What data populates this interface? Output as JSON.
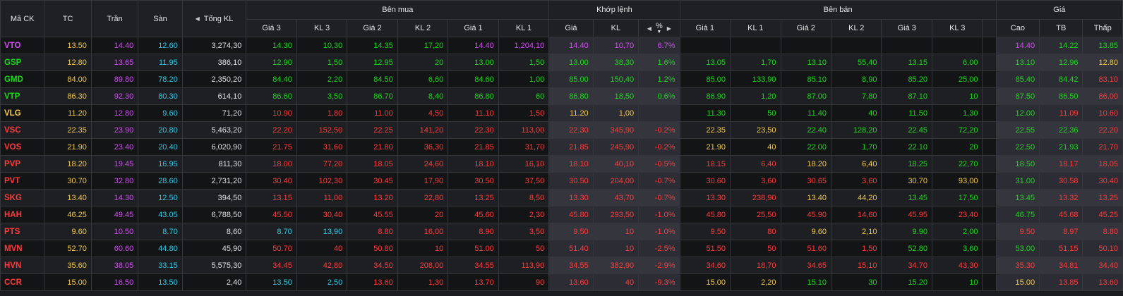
{
  "colors": {
    "ref": "#f2c94c",
    "ceil": "#d14cf0",
    "floor": "#34c9e6",
    "up": "#1dd61d",
    "down": "#ff3a3a",
    "neutral": "#e0e0e0"
  },
  "header": {
    "ma_ck": "Mã CK",
    "tc": "TC",
    "tran": "Trần",
    "san": "Sàn",
    "tong_kl": "Tổng KL",
    "ben_mua": "Bên mua",
    "khop_lenh": "Khớp lệnh",
    "ben_ban": "Bên bán",
    "gia_group": "Giá",
    "gia3": "Giá 3",
    "kl3": "KL 3",
    "gia2": "Giá 2",
    "kl2": "KL 2",
    "gia1": "Giá 1",
    "kl1": "KL 1",
    "gia": "Giá",
    "kl": "KL",
    "pct": "%",
    "cao": "Cao",
    "tb": "TB",
    "thap": "Thấp",
    "left_arrow_icon": "triangle-left-icon",
    "right_arrow_icon": "triangle-right-icon",
    "sort_icon": "sort-down-icon"
  },
  "rows": [
    {
      "s": [
        "VTO",
        "c"
      ],
      "tc": "13.50",
      "tran": "14.40",
      "san": "12.60",
      "tkl": "3,274,30",
      "b": [
        [
          "14.30",
          "u"
        ],
        [
          "10,30",
          "u"
        ],
        [
          "14.35",
          "u"
        ],
        [
          "17,20",
          "u"
        ],
        [
          "14.40",
          "c"
        ],
        [
          "1,204,10",
          "c"
        ]
      ],
      "m": [
        [
          "14.40",
          "c"
        ],
        [
          "10,70",
          "c"
        ],
        [
          "6.7%",
          "c"
        ]
      ],
      "a": [
        [
          "",
          ""
        ],
        [
          "",
          ""
        ],
        [
          "",
          ""
        ],
        [
          "",
          ""
        ],
        [
          "",
          ""
        ],
        [
          "",
          ""
        ]
      ],
      "h": [
        [
          "14.40",
          "c"
        ],
        [
          "14.22",
          "u"
        ],
        [
          "13.85",
          "u"
        ]
      ]
    },
    {
      "s": [
        "GSP",
        "u"
      ],
      "tc": "12.80",
      "tran": "13.65",
      "san": "11.95",
      "tkl": "386,10",
      "b": [
        [
          "12.90",
          "u"
        ],
        [
          "1,50",
          "u"
        ],
        [
          "12.95",
          "u"
        ],
        [
          "20",
          "u"
        ],
        [
          "13.00",
          "u"
        ],
        [
          "1,50",
          "u"
        ]
      ],
      "m": [
        [
          "13.00",
          "u"
        ],
        [
          "38,30",
          "u"
        ],
        [
          "1.6%",
          "u"
        ]
      ],
      "a": [
        [
          "13.05",
          "u"
        ],
        [
          "1,70",
          "u"
        ],
        [
          "13.10",
          "u"
        ],
        [
          "55,40",
          "u"
        ],
        [
          "13.15",
          "u"
        ],
        [
          "6,00",
          "u"
        ]
      ],
      "h": [
        [
          "13.10",
          "u"
        ],
        [
          "12.96",
          "u"
        ],
        [
          "12.80",
          "r"
        ]
      ]
    },
    {
      "s": [
        "GMD",
        "u"
      ],
      "tc": "84.00",
      "tran": "89.80",
      "san": "78.20",
      "tkl": "2,350,20",
      "b": [
        [
          "84.40",
          "u"
        ],
        [
          "2,20",
          "u"
        ],
        [
          "84.50",
          "u"
        ],
        [
          "6,60",
          "u"
        ],
        [
          "84.60",
          "u"
        ],
        [
          "1,00",
          "u"
        ]
      ],
      "m": [
        [
          "85.00",
          "u"
        ],
        [
          "150,40",
          "u"
        ],
        [
          "1.2%",
          "u"
        ]
      ],
      "a": [
        [
          "85.00",
          "u"
        ],
        [
          "133,90",
          "u"
        ],
        [
          "85.10",
          "u"
        ],
        [
          "8,90",
          "u"
        ],
        [
          "85.20",
          "u"
        ],
        [
          "25,00",
          "u"
        ]
      ],
      "h": [
        [
          "85.40",
          "u"
        ],
        [
          "84.42",
          "u"
        ],
        [
          "83.10",
          "d"
        ]
      ]
    },
    {
      "s": [
        "VTP",
        "u"
      ],
      "tc": "86.30",
      "tran": "92.30",
      "san": "80.30",
      "tkl": "614,10",
      "b": [
        [
          "86.60",
          "u"
        ],
        [
          "3,50",
          "u"
        ],
        [
          "86.70",
          "u"
        ],
        [
          "8,40",
          "u"
        ],
        [
          "86.80",
          "u"
        ],
        [
          "60",
          "u"
        ]
      ],
      "m": [
        [
          "86.80",
          "u"
        ],
        [
          "18,50",
          "u"
        ],
        [
          "0.6%",
          "u"
        ]
      ],
      "a": [
        [
          "86.90",
          "u"
        ],
        [
          "1,20",
          "u"
        ],
        [
          "87.00",
          "u"
        ],
        [
          "7,80",
          "u"
        ],
        [
          "87.10",
          "u"
        ],
        [
          "10",
          "u"
        ]
      ],
      "h": [
        [
          "87.50",
          "u"
        ],
        [
          "86.50",
          "u"
        ],
        [
          "86.00",
          "d"
        ]
      ]
    },
    {
      "s": [
        "VLG",
        "r"
      ],
      "tc": "11.20",
      "tran": "12.80",
      "san": "9.60",
      "tkl": "71,20",
      "b": [
        [
          "10.90",
          "d"
        ],
        [
          "1,80",
          "d"
        ],
        [
          "11.00",
          "d"
        ],
        [
          "4,50",
          "d"
        ],
        [
          "11.10",
          "d"
        ],
        [
          "1,50",
          "d"
        ]
      ],
      "m": [
        [
          "11.20",
          "r"
        ],
        [
          "1,00",
          "r"
        ],
        [
          "",
          ""
        ]
      ],
      "a": [
        [
          "11.30",
          "u"
        ],
        [
          "50",
          "u"
        ],
        [
          "11.40",
          "u"
        ],
        [
          "40",
          "u"
        ],
        [
          "11.50",
          "u"
        ],
        [
          "1,30",
          "u"
        ]
      ],
      "h": [
        [
          "12.00",
          "u"
        ],
        [
          "11.09",
          "d"
        ],
        [
          "10.60",
          "d"
        ]
      ]
    },
    {
      "s": [
        "VSC",
        "d"
      ],
      "tc": "22.35",
      "tran": "23.90",
      "san": "20.80",
      "tkl": "5,463,20",
      "b": [
        [
          "22.20",
          "d"
        ],
        [
          "152,50",
          "d"
        ],
        [
          "22.25",
          "d"
        ],
        [
          "141,20",
          "d"
        ],
        [
          "22.30",
          "d"
        ],
        [
          "113,00",
          "d"
        ]
      ],
      "m": [
        [
          "22.30",
          "d"
        ],
        [
          "345,90",
          "d"
        ],
        [
          "-0.2%",
          "d"
        ]
      ],
      "a": [
        [
          "22.35",
          "r"
        ],
        [
          "23,50",
          "r"
        ],
        [
          "22.40",
          "u"
        ],
        [
          "128,20",
          "u"
        ],
        [
          "22.45",
          "u"
        ],
        [
          "72,20",
          "u"
        ]
      ],
      "h": [
        [
          "22.55",
          "u"
        ],
        [
          "22.36",
          "u"
        ],
        [
          "22.20",
          "d"
        ]
      ]
    },
    {
      "s": [
        "VOS",
        "d"
      ],
      "tc": "21.90",
      "tran": "23.40",
      "san": "20.40",
      "tkl": "6,020,90",
      "b": [
        [
          "21.75",
          "d"
        ],
        [
          "31,60",
          "d"
        ],
        [
          "21.80",
          "d"
        ],
        [
          "36,30",
          "d"
        ],
        [
          "21.85",
          "d"
        ],
        [
          "31,70",
          "d"
        ]
      ],
      "m": [
        [
          "21.85",
          "d"
        ],
        [
          "245,90",
          "d"
        ],
        [
          "-0.2%",
          "d"
        ]
      ],
      "a": [
        [
          "21.90",
          "r"
        ],
        [
          "40",
          "r"
        ],
        [
          "22.00",
          "u"
        ],
        [
          "1,70",
          "u"
        ],
        [
          "22.10",
          "u"
        ],
        [
          "20",
          "u"
        ]
      ],
      "h": [
        [
          "22.50",
          "u"
        ],
        [
          "21.93",
          "u"
        ],
        [
          "21.70",
          "d"
        ]
      ]
    },
    {
      "s": [
        "PVP",
        "d"
      ],
      "tc": "18.20",
      "tran": "19.45",
      "san": "16.95",
      "tkl": "811,30",
      "b": [
        [
          "18.00",
          "d"
        ],
        [
          "77,20",
          "d"
        ],
        [
          "18.05",
          "d"
        ],
        [
          "24,60",
          "d"
        ],
        [
          "18.10",
          "d"
        ],
        [
          "16,10",
          "d"
        ]
      ],
      "m": [
        [
          "18.10",
          "d"
        ],
        [
          "40,10",
          "d"
        ],
        [
          "-0.5%",
          "d"
        ]
      ],
      "a": [
        [
          "18.15",
          "d"
        ],
        [
          "6,40",
          "d"
        ],
        [
          "18.20",
          "r"
        ],
        [
          "6,40",
          "r"
        ],
        [
          "18.25",
          "u"
        ],
        [
          "22,70",
          "u"
        ]
      ],
      "h": [
        [
          "18.50",
          "u"
        ],
        [
          "18.17",
          "d"
        ],
        [
          "18.05",
          "d"
        ]
      ]
    },
    {
      "s": [
        "PVT",
        "d"
      ],
      "tc": "30.70",
      "tran": "32.80",
      "san": "28.60",
      "tkl": "2,731,20",
      "b": [
        [
          "30.40",
          "d"
        ],
        [
          "102,30",
          "d"
        ],
        [
          "30.45",
          "d"
        ],
        [
          "17,90",
          "d"
        ],
        [
          "30.50",
          "d"
        ],
        [
          "37,50",
          "d"
        ]
      ],
      "m": [
        [
          "30.50",
          "d"
        ],
        [
          "204,00",
          "d"
        ],
        [
          "-0.7%",
          "d"
        ]
      ],
      "a": [
        [
          "30.60",
          "d"
        ],
        [
          "3,60",
          "d"
        ],
        [
          "30.65",
          "d"
        ],
        [
          "3,60",
          "d"
        ],
        [
          "30.70",
          "r"
        ],
        [
          "93,00",
          "r"
        ]
      ],
      "h": [
        [
          "31.00",
          "u"
        ],
        [
          "30.58",
          "d"
        ],
        [
          "30.40",
          "d"
        ]
      ]
    },
    {
      "s": [
        "SKG",
        "d"
      ],
      "tc": "13.40",
      "tran": "14.30",
      "san": "12.50",
      "tkl": "394,50",
      "b": [
        [
          "13.15",
          "d"
        ],
        [
          "11,00",
          "d"
        ],
        [
          "13.20",
          "d"
        ],
        [
          "22,80",
          "d"
        ],
        [
          "13.25",
          "d"
        ],
        [
          "8,50",
          "d"
        ]
      ],
      "m": [
        [
          "13.30",
          "d"
        ],
        [
          "43,70",
          "d"
        ],
        [
          "-0.7%",
          "d"
        ]
      ],
      "a": [
        [
          "13.30",
          "d"
        ],
        [
          "238,90",
          "d"
        ],
        [
          "13.40",
          "r"
        ],
        [
          "44,20",
          "r"
        ],
        [
          "13.45",
          "u"
        ],
        [
          "17,50",
          "u"
        ]
      ],
      "h": [
        [
          "13.45",
          "u"
        ],
        [
          "13.32",
          "d"
        ],
        [
          "13.25",
          "d"
        ]
      ]
    },
    {
      "s": [
        "HAH",
        "d"
      ],
      "tc": "46.25",
      "tran": "49.45",
      "san": "43.05",
      "tkl": "6,788,50",
      "b": [
        [
          "45.50",
          "d"
        ],
        [
          "30,40",
          "d"
        ],
        [
          "45.55",
          "d"
        ],
        [
          "20",
          "d"
        ],
        [
          "45.60",
          "d"
        ],
        [
          "2,30",
          "d"
        ]
      ],
      "m": [
        [
          "45.80",
          "d"
        ],
        [
          "293,50",
          "d"
        ],
        [
          "-1.0%",
          "d"
        ]
      ],
      "a": [
        [
          "45.80",
          "d"
        ],
        [
          "25,50",
          "d"
        ],
        [
          "45.90",
          "d"
        ],
        [
          "14,60",
          "d"
        ],
        [
          "45.95",
          "d"
        ],
        [
          "23,40",
          "d"
        ]
      ],
      "h": [
        [
          "46.75",
          "u"
        ],
        [
          "45.68",
          "d"
        ],
        [
          "45.25",
          "d"
        ]
      ]
    },
    {
      "s": [
        "PTS",
        "d"
      ],
      "tc": "9.60",
      "tran": "10.50",
      "san": "8.70",
      "tkl": "8,60",
      "b": [
        [
          "8.70",
          "f"
        ],
        [
          "13,90",
          "f"
        ],
        [
          "8.80",
          "d"
        ],
        [
          "16,00",
          "d"
        ],
        [
          "8.90",
          "d"
        ],
        [
          "3,50",
          "d"
        ]
      ],
      "m": [
        [
          "9.50",
          "d"
        ],
        [
          "10",
          "d"
        ],
        [
          "-1.0%",
          "d"
        ]
      ],
      "a": [
        [
          "9.50",
          "d"
        ],
        [
          "80",
          "d"
        ],
        [
          "9.60",
          "r"
        ],
        [
          "2,10",
          "r"
        ],
        [
          "9.90",
          "u"
        ],
        [
          "2,00",
          "u"
        ]
      ],
      "h": [
        [
          "9.50",
          "d"
        ],
        [
          "8.97",
          "d"
        ],
        [
          "8.80",
          "d"
        ]
      ]
    },
    {
      "s": [
        "MVN",
        "d"
      ],
      "tc": "52.70",
      "tran": "60.60",
      "san": "44.80",
      "tkl": "45,90",
      "b": [
        [
          "50.70",
          "d"
        ],
        [
          "40",
          "d"
        ],
        [
          "50.80",
          "d"
        ],
        [
          "10",
          "d"
        ],
        [
          "51.00",
          "d"
        ],
        [
          "50",
          "d"
        ]
      ],
      "m": [
        [
          "51.40",
          "d"
        ],
        [
          "10",
          "d"
        ],
        [
          "-2.5%",
          "d"
        ]
      ],
      "a": [
        [
          "51.50",
          "d"
        ],
        [
          "50",
          "d"
        ],
        [
          "51.60",
          "d"
        ],
        [
          "1,50",
          "d"
        ],
        [
          "52.80",
          "u"
        ],
        [
          "3,60",
          "u"
        ]
      ],
      "h": [
        [
          "53.00",
          "u"
        ],
        [
          "51.15",
          "d"
        ],
        [
          "50.10",
          "d"
        ]
      ]
    },
    {
      "s": [
        "HVN",
        "d"
      ],
      "tc": "35.60",
      "tran": "38.05",
      "san": "33.15",
      "tkl": "5,575,30",
      "b": [
        [
          "34.45",
          "d"
        ],
        [
          "42,80",
          "d"
        ],
        [
          "34.50",
          "d"
        ],
        [
          "208,00",
          "d"
        ],
        [
          "34.55",
          "d"
        ],
        [
          "113,90",
          "d"
        ]
      ],
      "m": [
        [
          "34.55",
          "d"
        ],
        [
          "382,90",
          "d"
        ],
        [
          "-2.9%",
          "d"
        ]
      ],
      "a": [
        [
          "34.60",
          "d"
        ],
        [
          "18,70",
          "d"
        ],
        [
          "34.65",
          "d"
        ],
        [
          "15,10",
          "d"
        ],
        [
          "34.70",
          "d"
        ],
        [
          "43,30",
          "d"
        ]
      ],
      "h": [
        [
          "35.30",
          "d"
        ],
        [
          "34.81",
          "d"
        ],
        [
          "34.40",
          "d"
        ]
      ]
    },
    {
      "s": [
        "CCR",
        "d"
      ],
      "tc": "15.00",
      "tran": "16.50",
      "san": "13.50",
      "tkl": "2,40",
      "b": [
        [
          "13.50",
          "f"
        ],
        [
          "2,50",
          "f"
        ],
        [
          "13.60",
          "d"
        ],
        [
          "1,30",
          "d"
        ],
        [
          "13.70",
          "d"
        ],
        [
          "90",
          "d"
        ]
      ],
      "m": [
        [
          "13.60",
          "d"
        ],
        [
          "40",
          "d"
        ],
        [
          "-9.3%",
          "d"
        ]
      ],
      "a": [
        [
          "15.00",
          "r"
        ],
        [
          "2,20",
          "r"
        ],
        [
          "15.10",
          "u"
        ],
        [
          "30",
          "u"
        ],
        [
          "15.20",
          "u"
        ],
        [
          "10",
          "u"
        ]
      ],
      "h": [
        [
          "15.00",
          "r"
        ],
        [
          "13.85",
          "d"
        ],
        [
          "13.60",
          "d"
        ]
      ]
    }
  ]
}
